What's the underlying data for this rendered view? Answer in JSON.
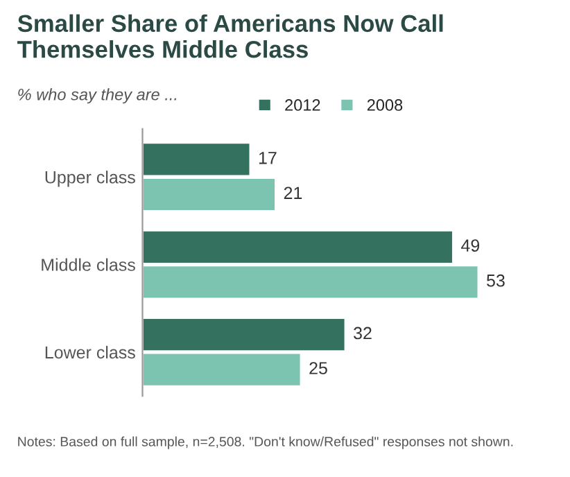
{
  "chart_data": {
    "type": "bar",
    "orientation": "horizontal",
    "title": "Smaller Share of Americans Now Call Themselves Middle Class",
    "subtitle": "% who say they are ...",
    "categories": [
      "Upper class",
      "Middle class",
      "Lower class"
    ],
    "series": [
      {
        "name": "2012",
        "color": "#34725f",
        "values": [
          17,
          49,
          32
        ]
      },
      {
        "name": "2008",
        "color": "#7cc4b0",
        "values": [
          21,
          53,
          25
        ]
      }
    ],
    "data_labels": true,
    "legend": "top",
    "grid": false,
    "annotations": [
      "Notes: Based on full sample, n=2,508. \"Don't know/Refused\" responses not shown."
    ]
  }
}
